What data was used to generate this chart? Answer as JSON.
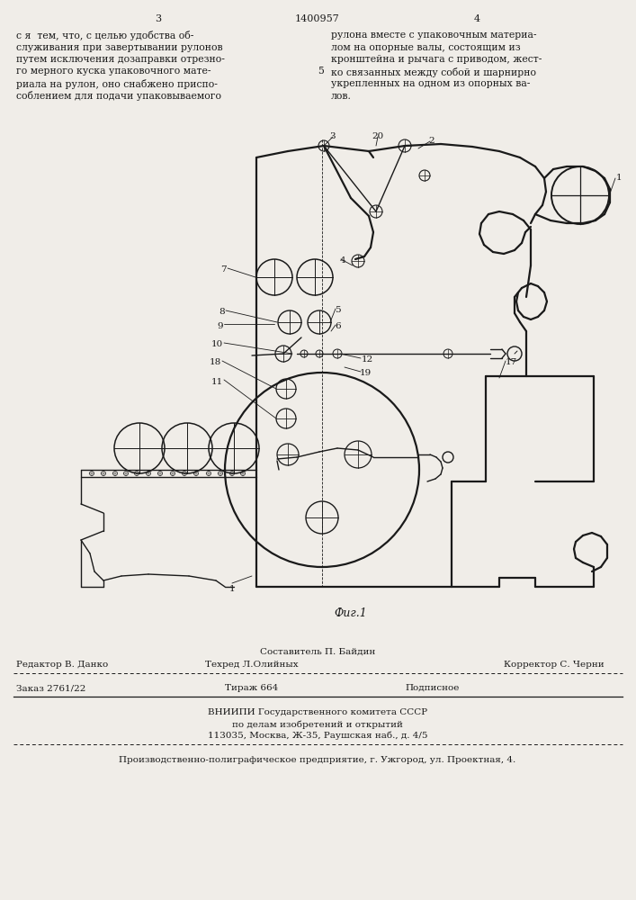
{
  "page_width": 7.07,
  "page_height": 10.0,
  "bg_color": "#f0ede8",
  "text_color": "#1a1a1a",
  "page_num_left": "3",
  "page_num_center": "1400957",
  "page_num_right": "4",
  "col_left_lines": [
    "с я  тем, что, с целью удобства об-",
    "служивания при завертывании рулонов",
    "путем исключения дозаправки отрезно-",
    "го мерного куска упаковочного мате-",
    "риала на рулон, оно снабжено приспо-",
    "соблением для подачи упаковываемого"
  ],
  "col_right_lines": [
    "рулона вместе с упаковочным материа-",
    "лом на опорные валы, состоящим из",
    "кронштейна и рычага с приводом, жест-",
    "ко связанных между собой и шарнирно",
    "укрепленных на одном из опорных ва-",
    "лов."
  ],
  "line_number_5": "5",
  "fig_caption": "Фиг.1",
  "footer_editor": "Редактор В. Данко",
  "footer_composer": "Составитель П. Байдин",
  "footer_corrector": "Корректор С. Черни",
  "footer_tech": "Техред Л.Олийных",
  "footer_order": "Заказ 2761/22",
  "footer_print": "Тираж 664",
  "footer_sub": "Подписное",
  "footer_org1": "ВНИИПИ Государственного комитета СССР",
  "footer_org2": "по делам изобретений и открытий",
  "footer_org3": "113035, Москва, Ж-35, Раушская наб., д. 4/5",
  "footer_bottom": "Производственно-полиграфическое предприятие, г. Ужгород, ул. Проектная, 4."
}
